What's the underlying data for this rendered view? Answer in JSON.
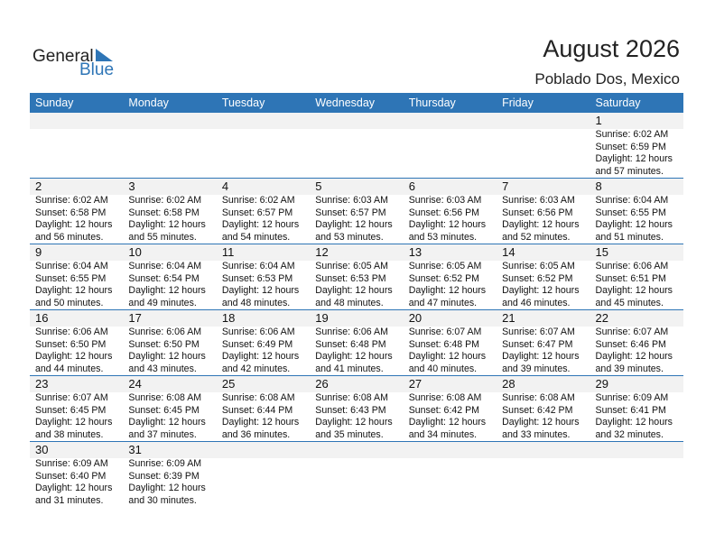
{
  "logo": {
    "general": "General",
    "blue": "Blue"
  },
  "header": {
    "title": "August 2026",
    "location": "Poblado Dos, Mexico"
  },
  "colors": {
    "accent": "#2e75b6",
    "band": "#f2f2f2"
  },
  "weekdays": [
    "Sunday",
    "Monday",
    "Tuesday",
    "Wednesday",
    "Thursday",
    "Friday",
    "Saturday"
  ],
  "weeks": [
    [
      null,
      null,
      null,
      null,
      null,
      null,
      {
        "day": "1",
        "sunrise": "Sunrise: 6:02 AM",
        "sunset": "Sunset: 6:59 PM",
        "daylight": "Daylight: 12 hours",
        "minutes": "and 57 minutes."
      }
    ],
    [
      {
        "day": "2",
        "sunrise": "Sunrise: 6:02 AM",
        "sunset": "Sunset: 6:58 PM",
        "daylight": "Daylight: 12 hours",
        "minutes": "and 56 minutes."
      },
      {
        "day": "3",
        "sunrise": "Sunrise: 6:02 AM",
        "sunset": "Sunset: 6:58 PM",
        "daylight": "Daylight: 12 hours",
        "minutes": "and 55 minutes."
      },
      {
        "day": "4",
        "sunrise": "Sunrise: 6:02 AM",
        "sunset": "Sunset: 6:57 PM",
        "daylight": "Daylight: 12 hours",
        "minutes": "and 54 minutes."
      },
      {
        "day": "5",
        "sunrise": "Sunrise: 6:03 AM",
        "sunset": "Sunset: 6:57 PM",
        "daylight": "Daylight: 12 hours",
        "minutes": "and 53 minutes."
      },
      {
        "day": "6",
        "sunrise": "Sunrise: 6:03 AM",
        "sunset": "Sunset: 6:56 PM",
        "daylight": "Daylight: 12 hours",
        "minutes": "and 53 minutes."
      },
      {
        "day": "7",
        "sunrise": "Sunrise: 6:03 AM",
        "sunset": "Sunset: 6:56 PM",
        "daylight": "Daylight: 12 hours",
        "minutes": "and 52 minutes."
      },
      {
        "day": "8",
        "sunrise": "Sunrise: 6:04 AM",
        "sunset": "Sunset: 6:55 PM",
        "daylight": "Daylight: 12 hours",
        "minutes": "and 51 minutes."
      }
    ],
    [
      {
        "day": "9",
        "sunrise": "Sunrise: 6:04 AM",
        "sunset": "Sunset: 6:55 PM",
        "daylight": "Daylight: 12 hours",
        "minutes": "and 50 minutes."
      },
      {
        "day": "10",
        "sunrise": "Sunrise: 6:04 AM",
        "sunset": "Sunset: 6:54 PM",
        "daylight": "Daylight: 12 hours",
        "minutes": "and 49 minutes."
      },
      {
        "day": "11",
        "sunrise": "Sunrise: 6:04 AM",
        "sunset": "Sunset: 6:53 PM",
        "daylight": "Daylight: 12 hours",
        "minutes": "and 48 minutes."
      },
      {
        "day": "12",
        "sunrise": "Sunrise: 6:05 AM",
        "sunset": "Sunset: 6:53 PM",
        "daylight": "Daylight: 12 hours",
        "minutes": "and 48 minutes."
      },
      {
        "day": "13",
        "sunrise": "Sunrise: 6:05 AM",
        "sunset": "Sunset: 6:52 PM",
        "daylight": "Daylight: 12 hours",
        "minutes": "and 47 minutes."
      },
      {
        "day": "14",
        "sunrise": "Sunrise: 6:05 AM",
        "sunset": "Sunset: 6:52 PM",
        "daylight": "Daylight: 12 hours",
        "minutes": "and 46 minutes."
      },
      {
        "day": "15",
        "sunrise": "Sunrise: 6:06 AM",
        "sunset": "Sunset: 6:51 PM",
        "daylight": "Daylight: 12 hours",
        "minutes": "and 45 minutes."
      }
    ],
    [
      {
        "day": "16",
        "sunrise": "Sunrise: 6:06 AM",
        "sunset": "Sunset: 6:50 PM",
        "daylight": "Daylight: 12 hours",
        "minutes": "and 44 minutes."
      },
      {
        "day": "17",
        "sunrise": "Sunrise: 6:06 AM",
        "sunset": "Sunset: 6:50 PM",
        "daylight": "Daylight: 12 hours",
        "minutes": "and 43 minutes."
      },
      {
        "day": "18",
        "sunrise": "Sunrise: 6:06 AM",
        "sunset": "Sunset: 6:49 PM",
        "daylight": "Daylight: 12 hours",
        "minutes": "and 42 minutes."
      },
      {
        "day": "19",
        "sunrise": "Sunrise: 6:06 AM",
        "sunset": "Sunset: 6:48 PM",
        "daylight": "Daylight: 12 hours",
        "minutes": "and 41 minutes."
      },
      {
        "day": "20",
        "sunrise": "Sunrise: 6:07 AM",
        "sunset": "Sunset: 6:48 PM",
        "daylight": "Daylight: 12 hours",
        "minutes": "and 40 minutes."
      },
      {
        "day": "21",
        "sunrise": "Sunrise: 6:07 AM",
        "sunset": "Sunset: 6:47 PM",
        "daylight": "Daylight: 12 hours",
        "minutes": "and 39 minutes."
      },
      {
        "day": "22",
        "sunrise": "Sunrise: 6:07 AM",
        "sunset": "Sunset: 6:46 PM",
        "daylight": "Daylight: 12 hours",
        "minutes": "and 39 minutes."
      }
    ],
    [
      {
        "day": "23",
        "sunrise": "Sunrise: 6:07 AM",
        "sunset": "Sunset: 6:45 PM",
        "daylight": "Daylight: 12 hours",
        "minutes": "and 38 minutes."
      },
      {
        "day": "24",
        "sunrise": "Sunrise: 6:08 AM",
        "sunset": "Sunset: 6:45 PM",
        "daylight": "Daylight: 12 hours",
        "minutes": "and 37 minutes."
      },
      {
        "day": "25",
        "sunrise": "Sunrise: 6:08 AM",
        "sunset": "Sunset: 6:44 PM",
        "daylight": "Daylight: 12 hours",
        "minutes": "and 36 minutes."
      },
      {
        "day": "26",
        "sunrise": "Sunrise: 6:08 AM",
        "sunset": "Sunset: 6:43 PM",
        "daylight": "Daylight: 12 hours",
        "minutes": "and 35 minutes."
      },
      {
        "day": "27",
        "sunrise": "Sunrise: 6:08 AM",
        "sunset": "Sunset: 6:42 PM",
        "daylight": "Daylight: 12 hours",
        "minutes": "and 34 minutes."
      },
      {
        "day": "28",
        "sunrise": "Sunrise: 6:08 AM",
        "sunset": "Sunset: 6:42 PM",
        "daylight": "Daylight: 12 hours",
        "minutes": "and 33 minutes."
      },
      {
        "day": "29",
        "sunrise": "Sunrise: 6:09 AM",
        "sunset": "Sunset: 6:41 PM",
        "daylight": "Daylight: 12 hours",
        "minutes": "and 32 minutes."
      }
    ],
    [
      {
        "day": "30",
        "sunrise": "Sunrise: 6:09 AM",
        "sunset": "Sunset: 6:40 PM",
        "daylight": "Daylight: 12 hours",
        "minutes": "and 31 minutes."
      },
      {
        "day": "31",
        "sunrise": "Sunrise: 6:09 AM",
        "sunset": "Sunset: 6:39 PM",
        "daylight": "Daylight: 12 hours",
        "minutes": "and 30 minutes."
      },
      null,
      null,
      null,
      null,
      null
    ]
  ]
}
